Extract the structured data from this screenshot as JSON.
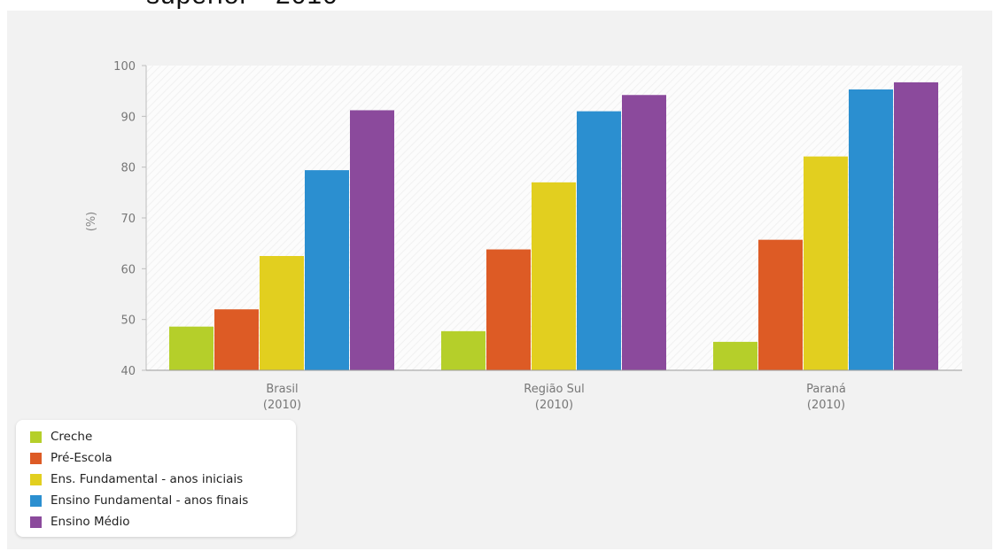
{
  "header": {
    "partial_text": "superior - 2010"
  },
  "chart_data": {
    "type": "bar",
    "title": "",
    "xlabel": "",
    "ylabel": "(%)",
    "ylim": [
      40,
      100
    ],
    "yticks": [
      40,
      50,
      60,
      70,
      80,
      90,
      100
    ],
    "categories": [
      {
        "line1": "Brasil",
        "line2": "(2010)"
      },
      {
        "line1": "Região Sul",
        "line2": "(2010)"
      },
      {
        "line1": "Paraná",
        "line2": "(2010)"
      }
    ],
    "series": [
      {
        "name": "Creche",
        "color": "#b5cf2a",
        "values": [
          48.6,
          47.7,
          45.6
        ]
      },
      {
        "name": "Pré-Escola",
        "color": "#dd5b25",
        "values": [
          52.0,
          63.8,
          65.7
        ]
      },
      {
        "name": "Ens. Fundamental - anos iniciais",
        "color": "#e2cf1f",
        "values": [
          62.5,
          77.0,
          82.1
        ]
      },
      {
        "name": "Ensino Fundamental - anos finais",
        "color": "#2b8fd0",
        "values": [
          79.4,
          91.0,
          95.3
        ]
      },
      {
        "name": "Ensino Médio",
        "color": "#8b4a9c",
        "values": [
          91.2,
          94.2,
          96.7
        ]
      }
    ],
    "grid": false,
    "legend_position": "bottom-left"
  }
}
